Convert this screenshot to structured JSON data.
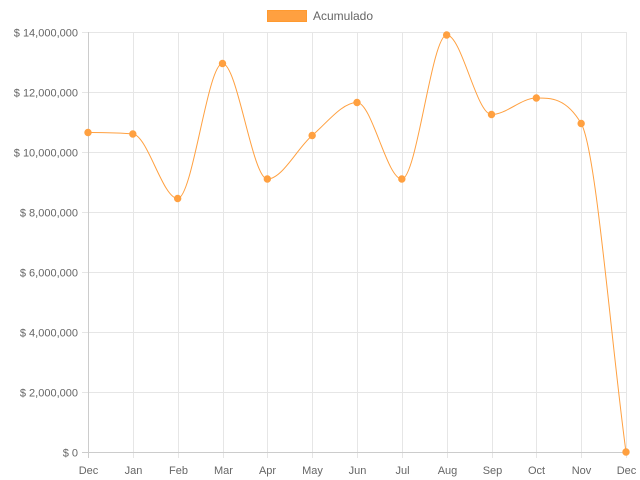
{
  "chart_data": {
    "type": "line",
    "legend": {
      "position": "top",
      "label": "Acumulado",
      "color": "#ffa040"
    },
    "categories": [
      "Dec",
      "Jan",
      "Feb",
      "Mar",
      "Apr",
      "May",
      "Jun",
      "Jul",
      "Aug",
      "Sep",
      "Oct",
      "Nov",
      "Dec"
    ],
    "series": [
      {
        "name": "Acumulado",
        "color": "#ffa040",
        "values": [
          10650000,
          10600000,
          8450000,
          12950000,
          9100000,
          10550000,
          11650000,
          9100000,
          13900000,
          11250000,
          11800000,
          10950000,
          0
        ]
      }
    ],
    "ylim": [
      0,
      14000000
    ],
    "yticks": [
      0,
      2000000,
      4000000,
      6000000,
      8000000,
      10000000,
      12000000,
      14000000
    ],
    "ytick_labels": [
      "$ 0",
      "$ 2,000,000",
      "$ 4,000,000",
      "$ 6,000,000",
      "$ 8,000,000",
      "$ 10,000,000",
      "$ 12,000,000",
      "$ 14,000,000"
    ],
    "grid": true,
    "title": "",
    "xlabel": "",
    "ylabel": ""
  }
}
